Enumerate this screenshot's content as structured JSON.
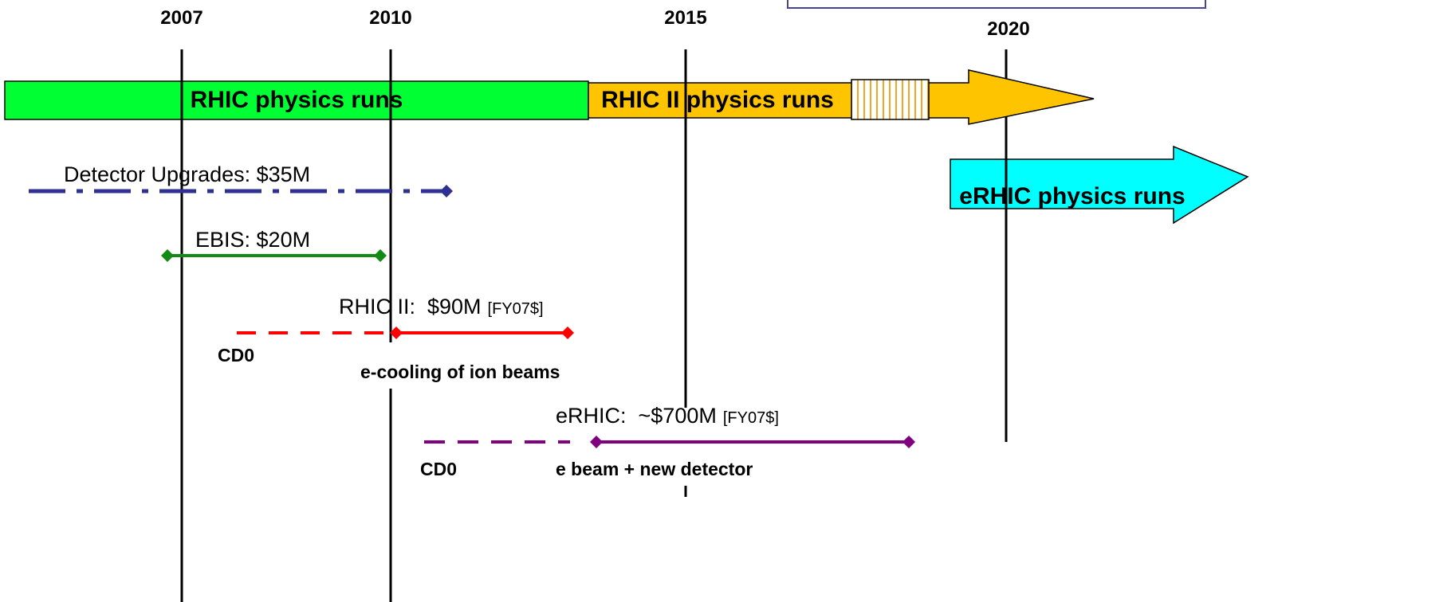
{
  "years": [
    "2007",
    "2010",
    "2015",
    "2020"
  ],
  "bars": {
    "rhic": "RHIC physics runs",
    "rhic2": "RHIC II physics runs",
    "erhic": "eRHIC physics runs"
  },
  "projects": [
    {
      "label": "Detector Upgrades: $35M"
    },
    {
      "label": "EBIS: $20M"
    },
    {
      "label": "RHIC II:  $90M",
      "note": "[FY07$]",
      "cd0": "CD0",
      "desc": "e-cooling of ion beams"
    },
    {
      "label": "eRHIC:  ~$700M",
      "note": "[FY07$]",
      "cd0": "CD0",
      "desc": "e beam + new detector"
    }
  ]
}
